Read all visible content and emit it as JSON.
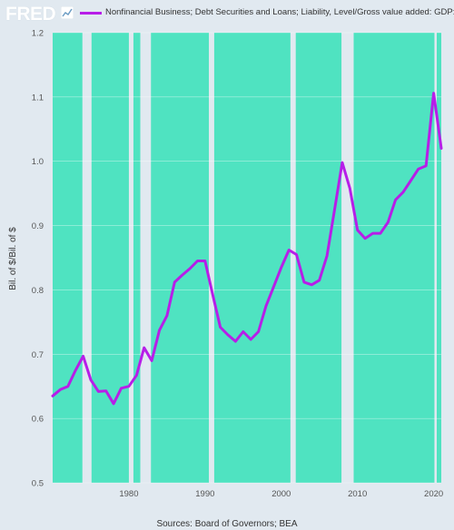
{
  "header": {
    "logo": "FRED",
    "logo_icon": "line-chart-icon",
    "legend_label": "Nonfinancial Business; Debt Securities and Loans; Liability, Level/Gross value added: GDP: Business: Nonfarm"
  },
  "footer": {
    "source": "Sources: Board of Governors; BEA"
  },
  "colors": {
    "series": "#b71ee8",
    "recession": "#4fe3c1",
    "background": "#e1e9f0",
    "gridline": "#ffffff"
  },
  "chart_data": {
    "type": "line",
    "title": "",
    "xlabel": "",
    "ylabel": "Bil. of $/Bil. of $",
    "xlim": [
      1970,
      2021
    ],
    "ylim": [
      0.5,
      1.2
    ],
    "yticks": [
      0.5,
      0.6,
      0.7,
      0.8,
      0.9,
      1.0,
      1.1,
      1.2
    ],
    "yticklabels": [
      "0.5",
      "0.6",
      "0.7",
      "0.8",
      "0.9",
      "1.0",
      "1.1",
      "1.2"
    ],
    "xticks": [
      1980,
      1990,
      2000,
      2010,
      2020
    ],
    "xticklabels": [
      "1980",
      "1990",
      "2000",
      "2010",
      "2020"
    ],
    "grid": true,
    "legend": "top",
    "background_bands": [
      [
        1970.0,
        1973.9
      ],
      [
        1975.1,
        1980.0
      ],
      [
        1980.6,
        1981.5
      ],
      [
        1982.9,
        1990.5
      ],
      [
        1991.2,
        2001.2
      ],
      [
        2001.9,
        2007.9
      ],
      [
        2009.5,
        2020.1
      ],
      [
        2020.4,
        2021.0
      ]
    ],
    "series": [
      {
        "name": "Nonfinancial Business; Debt Securities and Loans; Liability, Level/Gross value added: GDP: Business: Nonfarm",
        "x": [
          1970,
          1971,
          1972,
          1973,
          1974,
          1975,
          1976,
          1977,
          1978,
          1979,
          1980,
          1981,
          1982,
          1983,
          1984,
          1985,
          1986,
          1987,
          1988,
          1989,
          1990,
          1991,
          1992,
          1993,
          1994,
          1995,
          1996,
          1997,
          1998,
          1999,
          2000,
          2001,
          2002,
          2003,
          2004,
          2005,
          2006,
          2007,
          2008,
          2009,
          2010,
          2011,
          2012,
          2013,
          2014,
          2015,
          2016,
          2017,
          2018,
          2019,
          2020,
          2021
        ],
        "y": [
          0.635,
          0.645,
          0.65,
          0.675,
          0.697,
          0.66,
          0.642,
          0.643,
          0.623,
          0.647,
          0.65,
          0.667,
          0.71,
          0.69,
          0.737,
          0.76,
          0.812,
          0.823,
          0.833,
          0.845,
          0.845,
          0.793,
          0.742,
          0.73,
          0.72,
          0.735,
          0.723,
          0.735,
          0.775,
          0.805,
          0.835,
          0.862,
          0.855,
          0.812,
          0.808,
          0.815,
          0.853,
          0.925,
          0.998,
          0.958,
          0.893,
          0.88,
          0.888,
          0.888,
          0.905,
          0.94,
          0.952,
          0.97,
          0.988,
          0.993,
          1.106,
          1.02
        ]
      }
    ]
  }
}
